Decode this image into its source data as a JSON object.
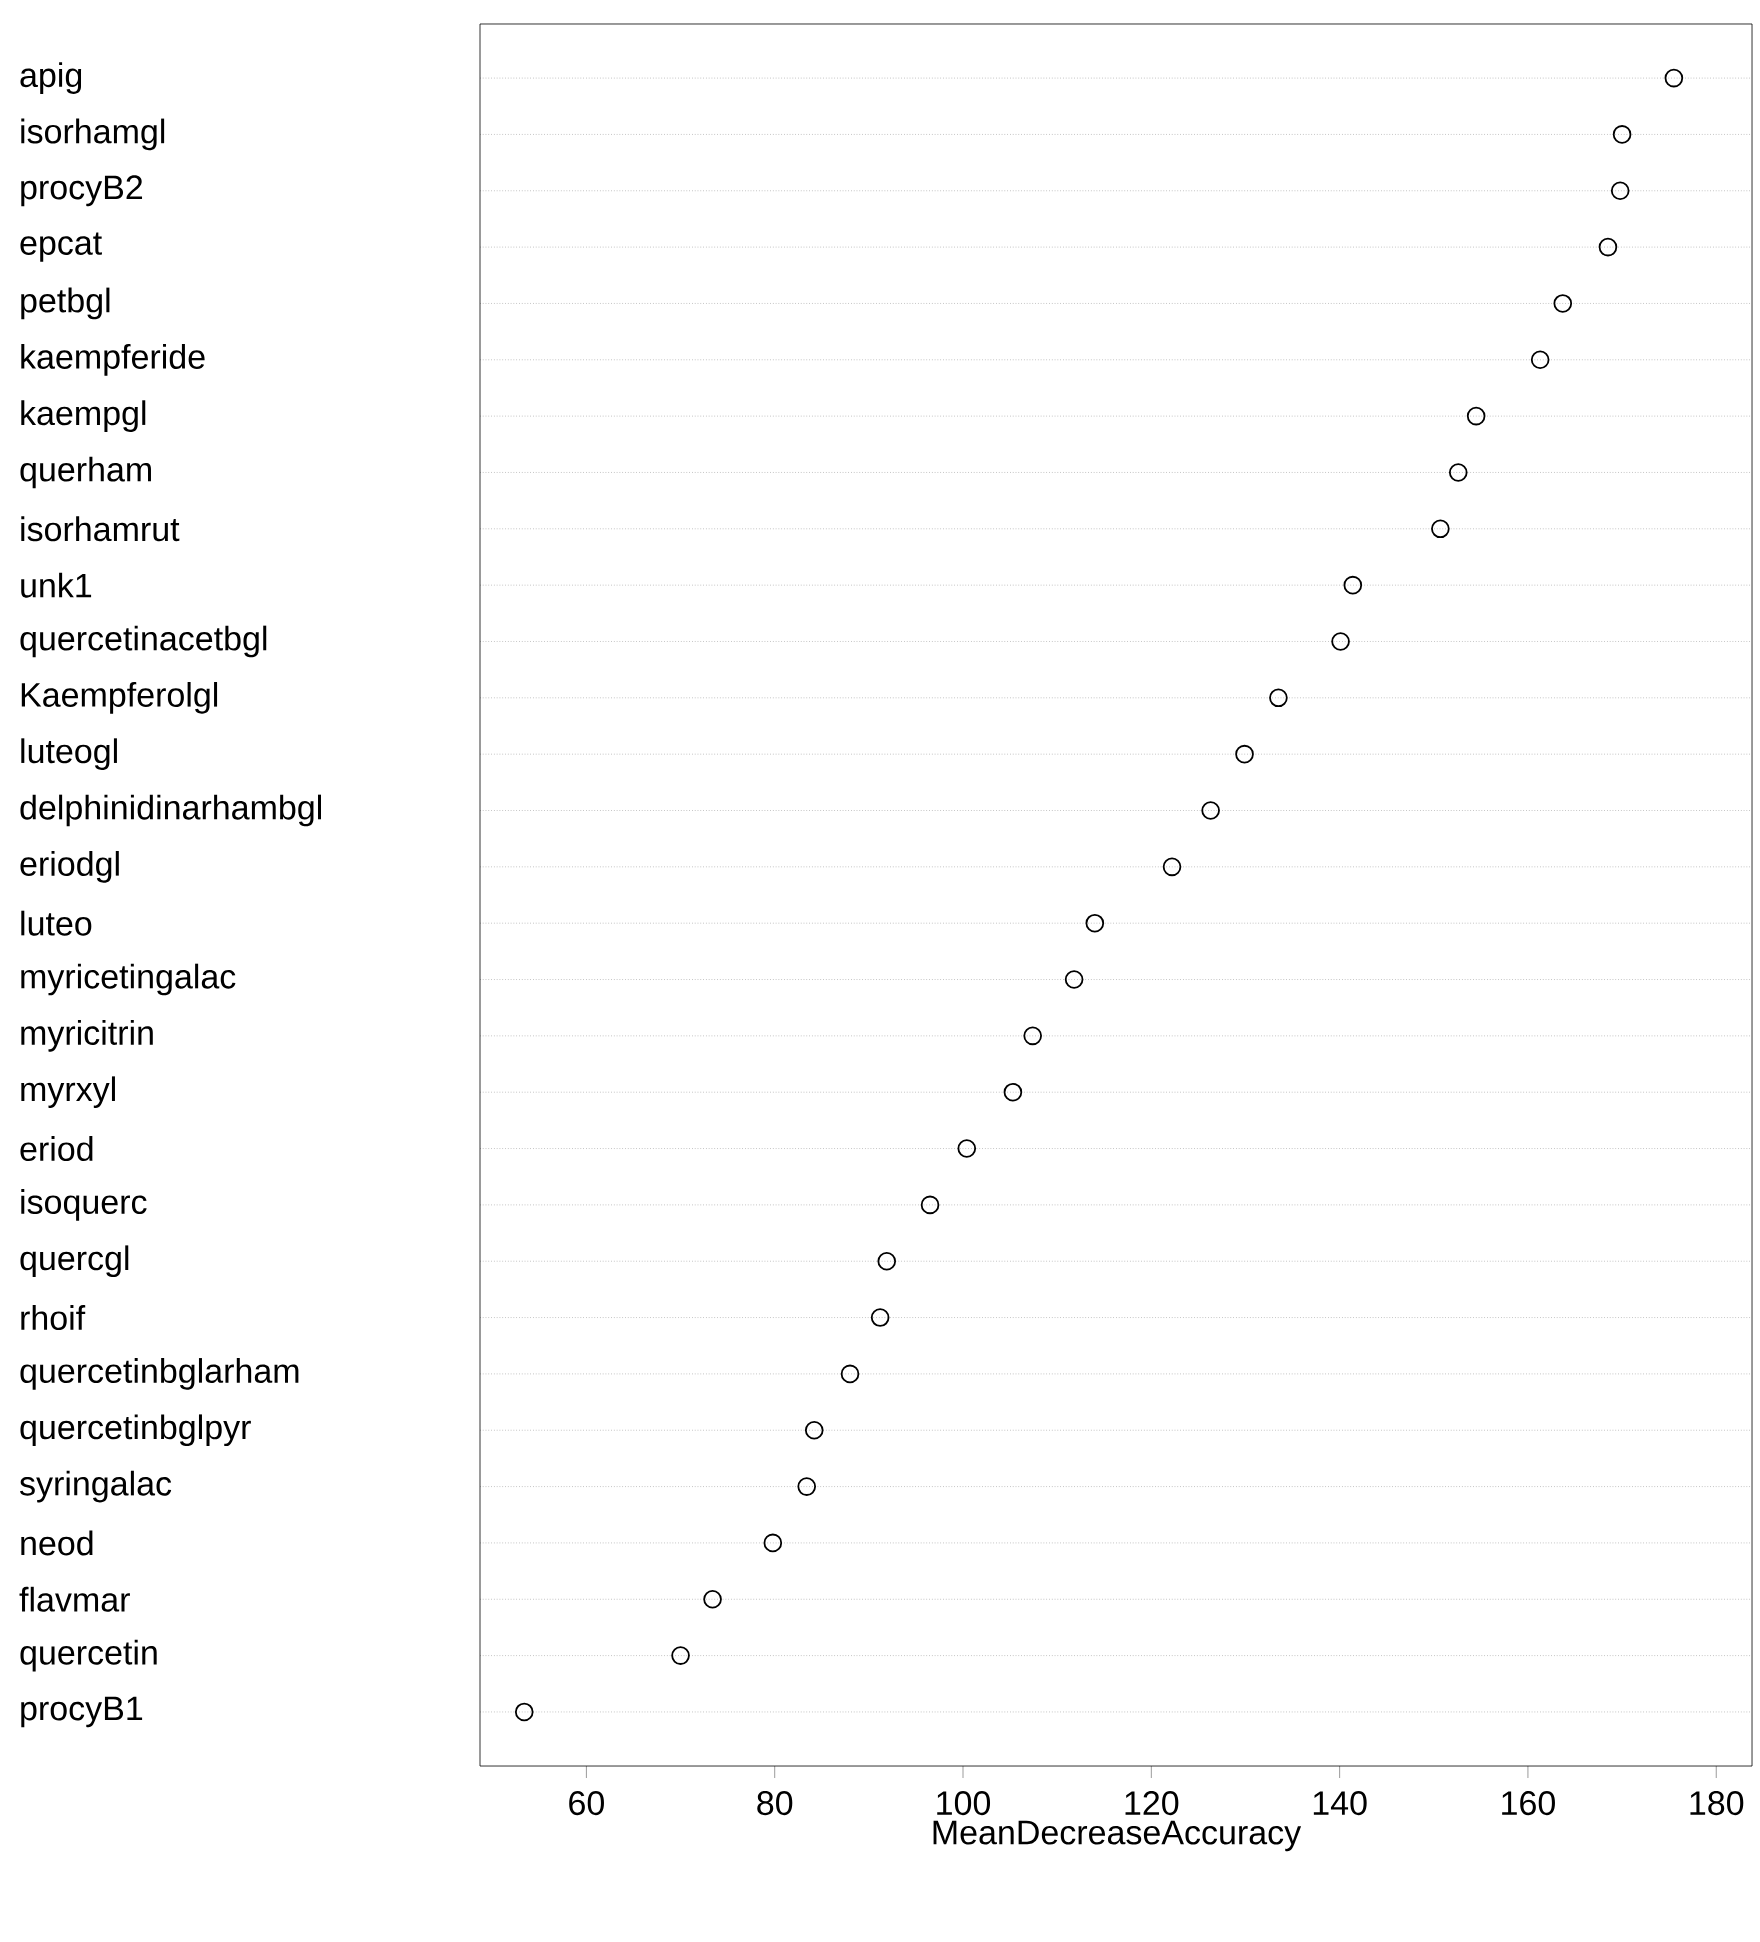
{
  "chart_data": {
    "type": "scatter",
    "orientation": "horizontal",
    "xlabel": "MeanDecreaseAccuracy",
    "categories": [
      "apig",
      "isorhamgl",
      "procyB2",
      "epcat",
      "petbgl",
      "kaempferide",
      "kaempgl",
      "querham",
      "isorhamrut",
      "unk1",
      "quercetinacetbgl",
      "Kaempferolgl",
      "luteogl",
      "delphinidinarhambgl",
      "eriodgl",
      "luteo",
      "myricetingalac",
      "myricitrin",
      "myrxyl",
      "eriod",
      "isoquerc",
      "quercgl",
      "rhoif",
      "quercetinbglarham",
      "quercetinbglpyr",
      "syringalac",
      "neod",
      "flavmar",
      "quercetin",
      "procyB1"
    ],
    "values": [
      175.5,
      170,
      169.8,
      168.5,
      163.7,
      161.3,
      154.5,
      152.6,
      150.7,
      141.4,
      140.1,
      133.5,
      129.9,
      126.3,
      122.2,
      114,
      111.8,
      107.4,
      105.3,
      100.4,
      96.5,
      91.9,
      91.2,
      88,
      84.2,
      83.4,
      79.8,
      73.4,
      70,
      53.4
    ],
    "color": "#000000",
    "marker": "circle",
    "grid": "y",
    "xlim": [
      48.7,
      183.8
    ],
    "xticks": [
      60,
      80,
      100,
      120,
      140,
      160,
      180
    ]
  }
}
